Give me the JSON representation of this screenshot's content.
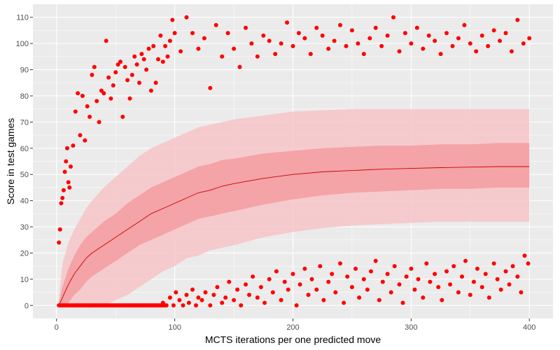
{
  "chart_data": {
    "type": "scatter",
    "title": "",
    "xlabel": "MCTS iterations per one predicted move",
    "ylabel": "Score in test games",
    "xlim": [
      -20,
      420
    ],
    "ylim": [
      -5,
      115
    ],
    "x_ticks": [
      0,
      100,
      200,
      300,
      400
    ],
    "y_ticks": [
      0,
      10,
      20,
      30,
      40,
      50,
      60,
      70,
      80,
      90,
      100,
      110
    ],
    "grid": true,
    "legend": "none",
    "colors": {
      "panel": "#ebebeb",
      "grid_major": "#ffffff",
      "points": "#ff0000",
      "mean_line": "#cc0000",
      "band_outer": "#f7c4c8",
      "band_inner": "#f4999d"
    },
    "mean_curve": {
      "x": [
        2,
        5,
        10,
        15,
        20,
        25,
        30,
        40,
        50,
        60,
        70,
        80,
        90,
        100,
        110,
        120,
        130,
        140,
        150,
        175,
        200,
        225,
        250,
        275,
        300,
        325,
        350,
        375,
        400
      ],
      "mean": [
        0,
        3,
        8,
        12,
        15,
        18,
        20,
        23,
        26,
        29,
        32,
        35,
        37,
        39,
        41,
        43,
        44,
        45.5,
        46.5,
        48.5,
        50,
        51,
        51.5,
        52,
        52.3,
        52.6,
        52.8,
        53,
        53
      ],
      "inner_lower": [
        0,
        0,
        1,
        4,
        6,
        9,
        11,
        14,
        17,
        20,
        23,
        25,
        27,
        29,
        31,
        33,
        34,
        35,
        36,
        38.5,
        40.5,
        42,
        43,
        43.5,
        44,
        44.5,
        44.5,
        45,
        45
      ],
      "inner_upper": [
        1,
        7,
        14,
        19,
        23,
        26,
        28,
        32,
        35,
        39,
        42,
        45,
        47,
        49,
        51,
        53,
        54,
        55.5,
        56,
        58,
        59,
        60,
        60.5,
        61,
        61,
        61.5,
        61.5,
        62,
        62
      ],
      "outer_lower": [
        0,
        0,
        0,
        0,
        0,
        0,
        0,
        0,
        2,
        4,
        7,
        10,
        13,
        15,
        18,
        19,
        21,
        22,
        23,
        26,
        28,
        29.5,
        30.5,
        31,
        31.5,
        32,
        32,
        32,
        32
      ],
      "outer_upper": [
        2,
        16,
        24,
        29,
        33,
        37,
        40,
        45,
        49,
        53,
        57,
        60,
        62,
        64,
        66,
        68,
        69,
        70,
        71,
        72.5,
        74,
        74.5,
        75,
        75,
        75,
        75,
        75,
        75,
        75
      ]
    },
    "scatter_upper": {
      "x": [
        2,
        3,
        4,
        5,
        6,
        7,
        8,
        9,
        10,
        11,
        12,
        14,
        16,
        18,
        20,
        22,
        24,
        26,
        28,
        30,
        32,
        34,
        36,
        38,
        40,
        42,
        44,
        46,
        48,
        50,
        52,
        54,
        56,
        58,
        60,
        62,
        64,
        66,
        68,
        70,
        72,
        74,
        76,
        78,
        80,
        82,
        84,
        86,
        88,
        90,
        92,
        94,
        96,
        98,
        100,
        105,
        110,
        115,
        120,
        125,
        130,
        135,
        140,
        145,
        150,
        155,
        160,
        165,
        170,
        175,
        180,
        185,
        190,
        195,
        200,
        205,
        210,
        215,
        220,
        225,
        230,
        235,
        240,
        245,
        250,
        255,
        260,
        265,
        270,
        275,
        280,
        285,
        290,
        295,
        300,
        305,
        310,
        315,
        320,
        325,
        330,
        335,
        340,
        345,
        350,
        355,
        360,
        365,
        370,
        375,
        380,
        385,
        390,
        395,
        400
      ],
      "y": [
        24,
        29,
        39,
        41,
        44,
        51,
        55,
        60,
        47,
        45,
        53,
        61,
        74,
        81,
        65,
        80,
        63,
        76,
        72,
        88,
        91,
        78,
        70,
        82,
        81,
        101,
        87,
        79,
        84,
        89,
        92,
        93,
        72,
        91,
        86,
        79,
        88,
        95,
        92,
        85,
        96,
        94,
        90,
        98,
        82,
        99,
        85,
        94,
        103,
        93,
        99,
        95,
        101,
        109,
        104,
        97,
        110,
        104,
        98,
        102,
        83,
        107,
        95,
        104,
        98,
        91,
        106,
        100,
        95,
        103,
        101,
        96,
        100,
        108,
        99,
        104,
        102,
        96,
        106,
        103,
        98,
        101,
        107,
        99,
        105,
        100,
        96,
        102,
        106,
        99,
        103,
        110,
        97,
        104,
        100,
        106,
        98,
        103,
        101,
        96,
        104,
        99,
        102,
        107,
        100,
        97,
        103,
        99,
        105,
        101,
        104,
        97,
        109,
        100,
        102
      ]
    },
    "scatter_lower": {
      "x": [
        90,
        93,
        96,
        99,
        101,
        104,
        107,
        110,
        112,
        115,
        118,
        120,
        123,
        126,
        130,
        133,
        136,
        140,
        143,
        146,
        150,
        153,
        156,
        160,
        163,
        166,
        170,
        173,
        176,
        180,
        183,
        186,
        190,
        193,
        196,
        200,
        203,
        206,
        210,
        213,
        216,
        220,
        223,
        226,
        230,
        233,
        236,
        240,
        243,
        246,
        250,
        253,
        256,
        260,
        263,
        266,
        270,
        273,
        276,
        280,
        283,
        286,
        290,
        293,
        296,
        300,
        303,
        306,
        310,
        313,
        316,
        320,
        323,
        326,
        330,
        333,
        336,
        340,
        343,
        346,
        350,
        353,
        356,
        360,
        363,
        366,
        370,
        373,
        376,
        380,
        383,
        386,
        390,
        393,
        396,
        399
      ],
      "y": [
        1,
        0,
        3,
        0,
        5,
        2,
        0,
        4,
        1,
        6,
        0,
        3,
        2,
        5,
        0,
        4,
        7,
        1,
        3,
        9,
        2,
        6,
        0,
        8,
        4,
        11,
        3,
        7,
        1,
        10,
        5,
        13,
        2,
        9,
        6,
        12,
        0,
        8,
        14,
        4,
        10,
        6,
        15,
        2,
        9,
        12,
        5,
        16,
        1,
        11,
        7,
        14,
        3,
        10,
        6,
        13,
        17,
        2,
        9,
        12,
        5,
        15,
        8,
        1,
        11,
        14,
        6,
        10,
        3,
        16,
        9,
        12,
        7,
        2,
        13,
        8,
        15,
        5,
        11,
        17,
        4,
        9,
        14,
        7,
        12,
        3,
        16,
        10,
        6,
        13,
        8,
        15,
        11,
        5,
        19,
        16
      ]
    },
    "zero_points_x_range": [
      2,
      92
    ]
  }
}
